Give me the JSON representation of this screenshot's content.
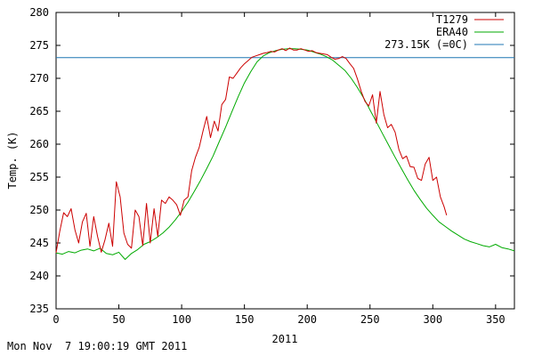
{
  "chart_data": {
    "type": "line",
    "xlabel": "2011",
    "ylabel": "Temp. (K)",
    "xlim": [
      0,
      365
    ],
    "ylim": [
      235,
      280
    ],
    "x_ticks": [
      0,
      50,
      100,
      150,
      200,
      250,
      300,
      350
    ],
    "y_ticks": [
      235,
      240,
      245,
      250,
      255,
      260,
      265,
      270,
      275,
      280
    ],
    "legend_position": "top-right",
    "grid": false,
    "reference_line": {
      "name": "273.15K (=0C)",
      "y": 273.15,
      "color": "#1f77b4"
    },
    "series": [
      {
        "name": "T1279",
        "color": "#cc0000",
        "x": [
          0,
          3,
          6,
          9,
          12,
          15,
          18,
          21,
          24,
          27,
          30,
          33,
          36,
          39,
          42,
          45,
          48,
          51,
          54,
          57,
          60,
          63,
          66,
          69,
          72,
          75,
          78,
          81,
          84,
          87,
          90,
          93,
          96,
          99,
          102,
          105,
          108,
          111,
          114,
          117,
          120,
          123,
          126,
          129,
          132,
          135,
          138,
          141,
          144,
          147,
          150,
          153,
          156,
          159,
          162,
          165,
          168,
          171,
          174,
          177,
          180,
          183,
          186,
          189,
          192,
          195,
          198,
          201,
          204,
          207,
          210,
          213,
          216,
          219,
          222,
          225,
          228,
          231,
          234,
          237,
          240,
          243,
          246,
          249,
          252,
          255,
          258,
          261,
          264,
          267,
          270,
          273,
          276,
          279,
          282,
          285,
          288,
          291,
          294,
          297,
          300,
          303,
          306,
          309,
          311
        ],
        "y": [
          243.5,
          246.8,
          249.6,
          249.0,
          250.2,
          247.0,
          245.0,
          248.2,
          249.5,
          244.5,
          249.0,
          246.0,
          243.6,
          245.5,
          248.0,
          244.5,
          254.3,
          252.0,
          246.5,
          244.8,
          244.2,
          250.0,
          249.0,
          244.6,
          251.0,
          245.0,
          250.2,
          246.0,
          251.5,
          251.0,
          252.0,
          251.5,
          250.8,
          249.2,
          251.5,
          252.0,
          256.0,
          258.0,
          259.5,
          262.0,
          264.2,
          261.0,
          263.5,
          262.0,
          266.0,
          266.8,
          270.2,
          270.0,
          270.8,
          271.6,
          272.2,
          272.7,
          273.2,
          273.4,
          273.6,
          273.8,
          273.9,
          274.1,
          274.0,
          274.3,
          274.5,
          274.2,
          274.6,
          274.3,
          274.3,
          274.5,
          274.3,
          274.1,
          274.2,
          273.9,
          273.8,
          273.7,
          273.6,
          273.2,
          272.9,
          273.0,
          273.3,
          273.0,
          272.2,
          271.5,
          269.9,
          268.0,
          266.5,
          265.8,
          267.5,
          263.2,
          268.0,
          264.5,
          262.5,
          263.0,
          261.8,
          259.2,
          257.8,
          258.2,
          256.6,
          256.5,
          254.8,
          254.5,
          257.0,
          258.0,
          254.5,
          255.0,
          252.0,
          250.5,
          249.2
        ]
      },
      {
        "name": "ERA40",
        "color": "#00aa00",
        "x": [
          0,
          5,
          10,
          15,
          20,
          25,
          30,
          35,
          40,
          45,
          50,
          55,
          60,
          65,
          70,
          75,
          80,
          85,
          90,
          95,
          100,
          105,
          110,
          115,
          120,
          125,
          130,
          135,
          140,
          145,
          150,
          155,
          160,
          165,
          170,
          175,
          180,
          185,
          190,
          195,
          200,
          205,
          210,
          215,
          220,
          225,
          230,
          235,
          240,
          245,
          250,
          255,
          260,
          265,
          270,
          275,
          280,
          285,
          290,
          295,
          300,
          305,
          310,
          315,
          320,
          325,
          330,
          335,
          340,
          345,
          350,
          355,
          360,
          365
        ],
        "y": [
          243.5,
          243.3,
          243.7,
          243.5,
          243.9,
          244.1,
          243.8,
          244.2,
          243.4,
          243.2,
          243.6,
          242.5,
          243.4,
          244.0,
          244.8,
          245.2,
          245.8,
          246.5,
          247.4,
          248.5,
          249.8,
          251.2,
          252.8,
          254.5,
          256.3,
          258.2,
          260.4,
          262.6,
          264.9,
          267.2,
          269.3,
          271.0,
          272.5,
          273.4,
          273.9,
          274.2,
          274.4,
          274.5,
          274.5,
          274.4,
          274.3,
          274.0,
          273.7,
          273.3,
          272.8,
          272.0,
          271.2,
          270.0,
          268.6,
          267.0,
          265.2,
          263.4,
          261.6,
          259.8,
          258.0,
          256.3,
          254.6,
          253.0,
          251.6,
          250.3,
          249.2,
          248.2,
          247.5,
          246.8,
          246.2,
          245.6,
          245.2,
          244.9,
          244.6,
          244.4,
          244.8,
          244.3,
          244.1,
          243.8
        ]
      }
    ]
  },
  "footer": {
    "timestamp": "Mon Nov  7 19:00:19 GMT 2011"
  }
}
